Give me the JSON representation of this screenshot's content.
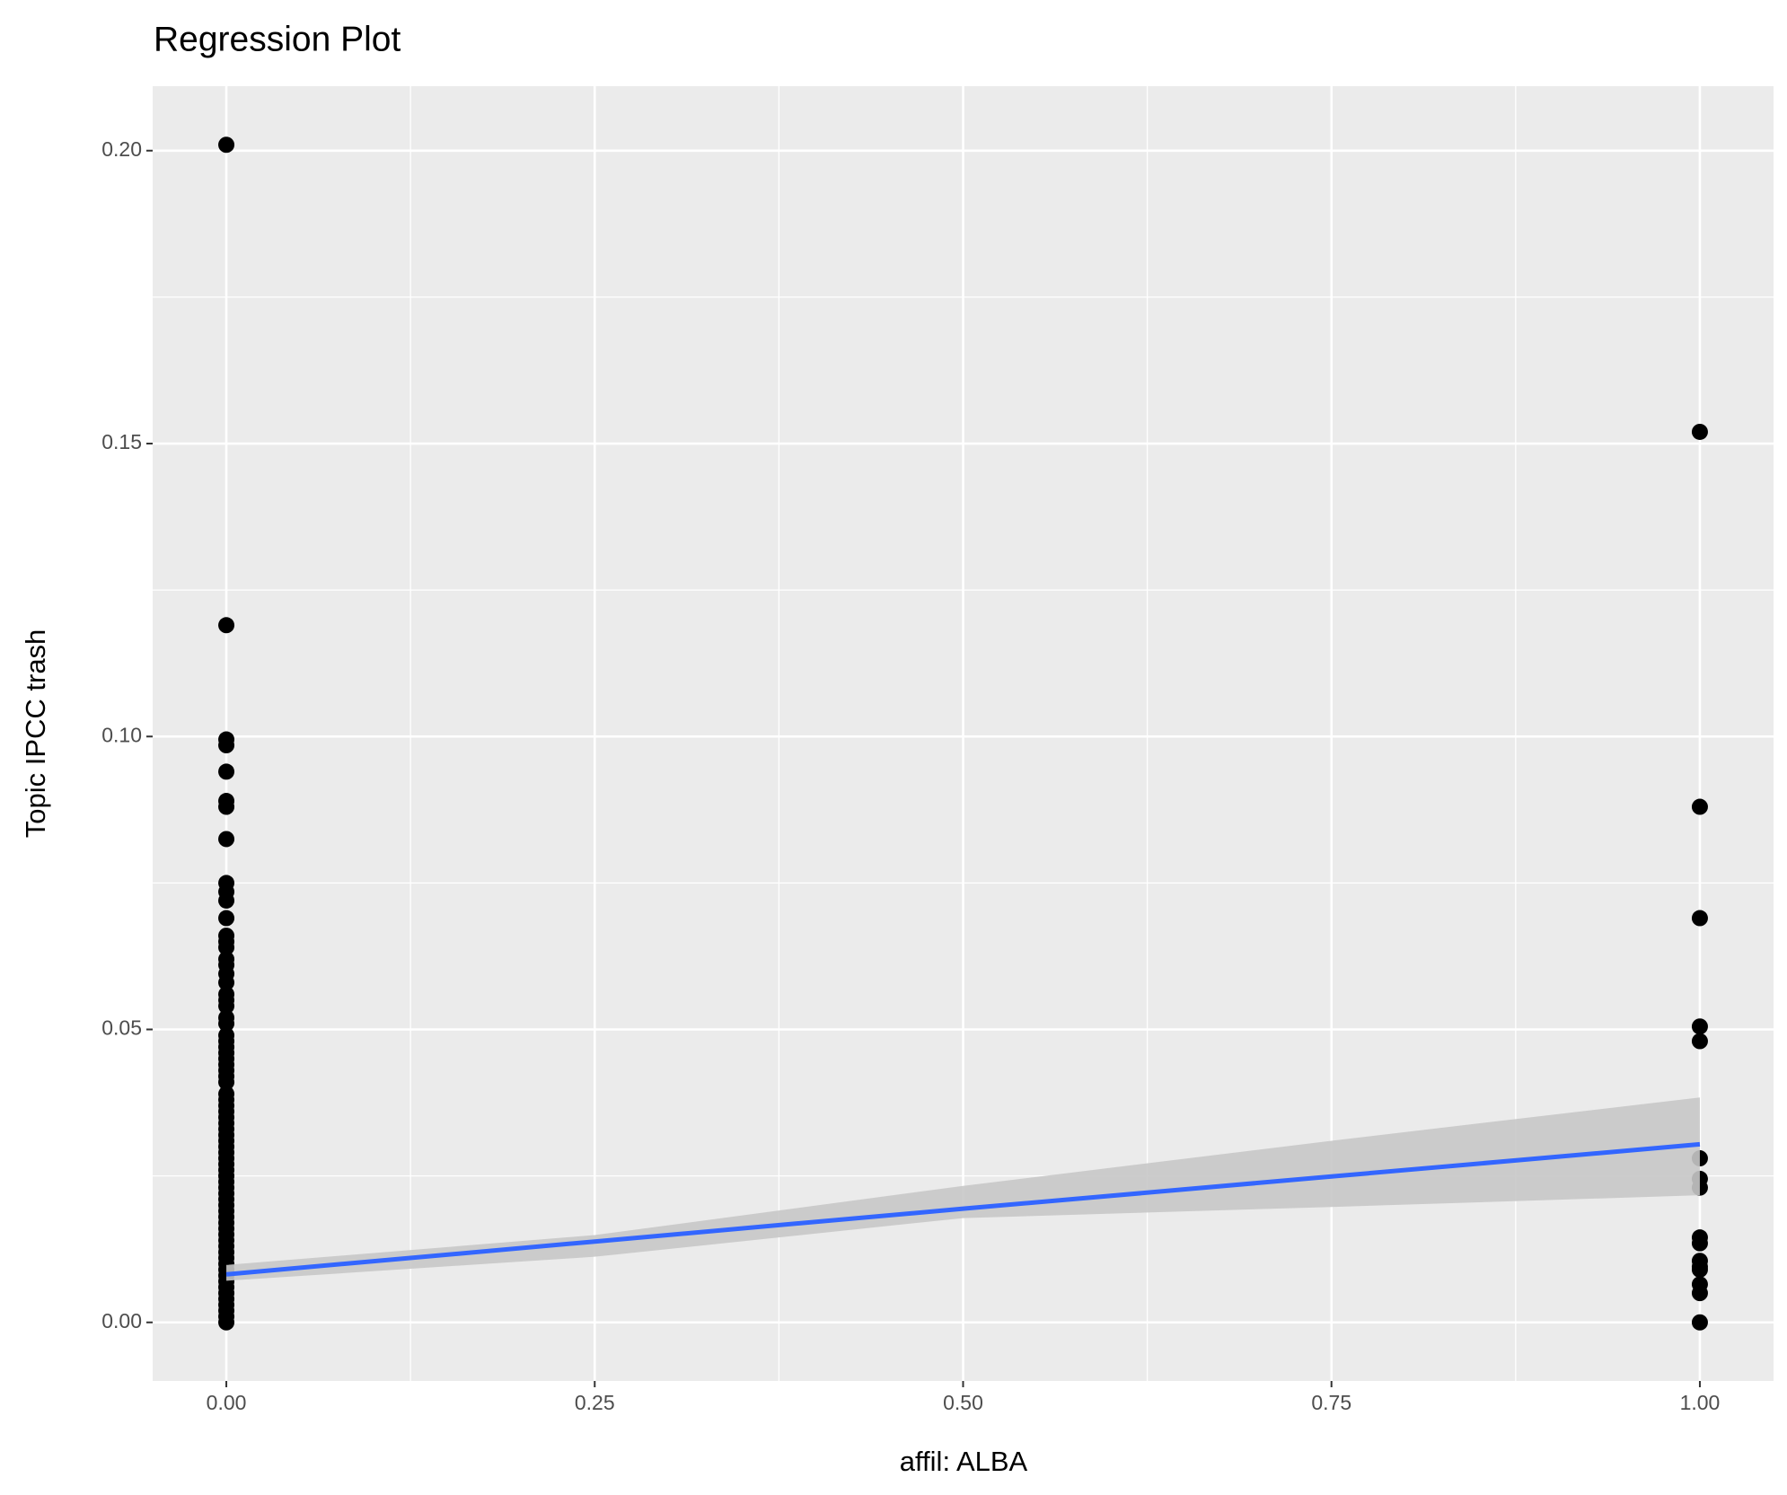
{
  "chart_data": {
    "type": "scatter",
    "title": "Regression Plot",
    "x_label": "affil: ALBA",
    "y_label": "Topic IPCC trash",
    "xlim": [
      -0.05,
      1.05
    ],
    "ylim": [
      -0.01,
      0.211
    ],
    "xticks": [
      {
        "value": 0,
        "label": "0.00"
      },
      0.25,
      {
        "value": 0.5,
        "label": "0.50"
      },
      0.75,
      {
        "value": 1,
        "label": "1.00"
      }
    ],
    "yticks": [
      {
        "value": 0,
        "label": "0.00"
      },
      0.05,
      {
        "value": 0.1,
        "label": "0.10"
      },
      0.15,
      {
        "value": 0.2,
        "label": "0.20"
      }
    ],
    "grid": true,
    "points": {
      "color": "#000000",
      "x": [
        0,
        0,
        0,
        0,
        0,
        0,
        0,
        0,
        0,
        0,
        0,
        0,
        0,
        0,
        0,
        0,
        0,
        0,
        0,
        0,
        0,
        0,
        0,
        0,
        0,
        0,
        0,
        0,
        0,
        0,
        0,
        0,
        0,
        0,
        0,
        0,
        0,
        0,
        0,
        0,
        0,
        0,
        0,
        0,
        0,
        0,
        0,
        0,
        0,
        0,
        0,
        0,
        0,
        0,
        0,
        0,
        0,
        0,
        0,
        0,
        0,
        0,
        0,
        0,
        0,
        0,
        0,
        0,
        0,
        0,
        0,
        0,
        0,
        1,
        1,
        1,
        1,
        1,
        1,
        1,
        1,
        1,
        1,
        1,
        1,
        1,
        1,
        1,
        1
      ],
      "y": [
        0.201,
        0.119,
        0.0995,
        0.0985,
        0.094,
        0.089,
        0.088,
        0.0825,
        0.075,
        0.0735,
        0.072,
        0.069,
        0.066,
        0.065,
        0.064,
        0.062,
        0.061,
        0.0595,
        0.058,
        0.056,
        0.055,
        0.054,
        0.052,
        0.051,
        0.049,
        0.048,
        0.047,
        0.046,
        0.045,
        0.044,
        0.043,
        0.042,
        0.041,
        0.039,
        0.038,
        0.037,
        0.036,
        0.035,
        0.034,
        0.033,
        0.032,
        0.031,
        0.03,
        0.029,
        0.028,
        0.027,
        0.026,
        0.025,
        0.024,
        0.023,
        0.022,
        0.021,
        0.02,
        0.019,
        0.018,
        0.017,
        0.016,
        0.015,
        0.014,
        0.013,
        0.012,
        0.011,
        0.01,
        0.009,
        0.008,
        0.007,
        0.006,
        0.005,
        0.004,
        0.003,
        0.002,
        0.001,
        0,
        0.152,
        0.088,
        0.069,
        0.0505,
        0.048,
        0.028,
        0.0245,
        0.023,
        0.0145,
        0.0135,
        0.0105,
        0.0095,
        0.009,
        0.0065,
        0.005,
        0
      ]
    },
    "fit": {
      "color": "#3366ff",
      "band_color": "#c8c8c8",
      "x": [
        0,
        0.25,
        0.5,
        0.75,
        1
      ],
      "y": [
        0.0082,
        0.0138,
        0.0194,
        0.0249,
        0.0304
      ],
      "lower": [
        0.0071,
        0.0112,
        0.0178,
        0.0197,
        0.0217
      ],
      "upper": [
        0.0098,
        0.0149,
        0.0233,
        0.031,
        0.0384
      ]
    }
  }
}
